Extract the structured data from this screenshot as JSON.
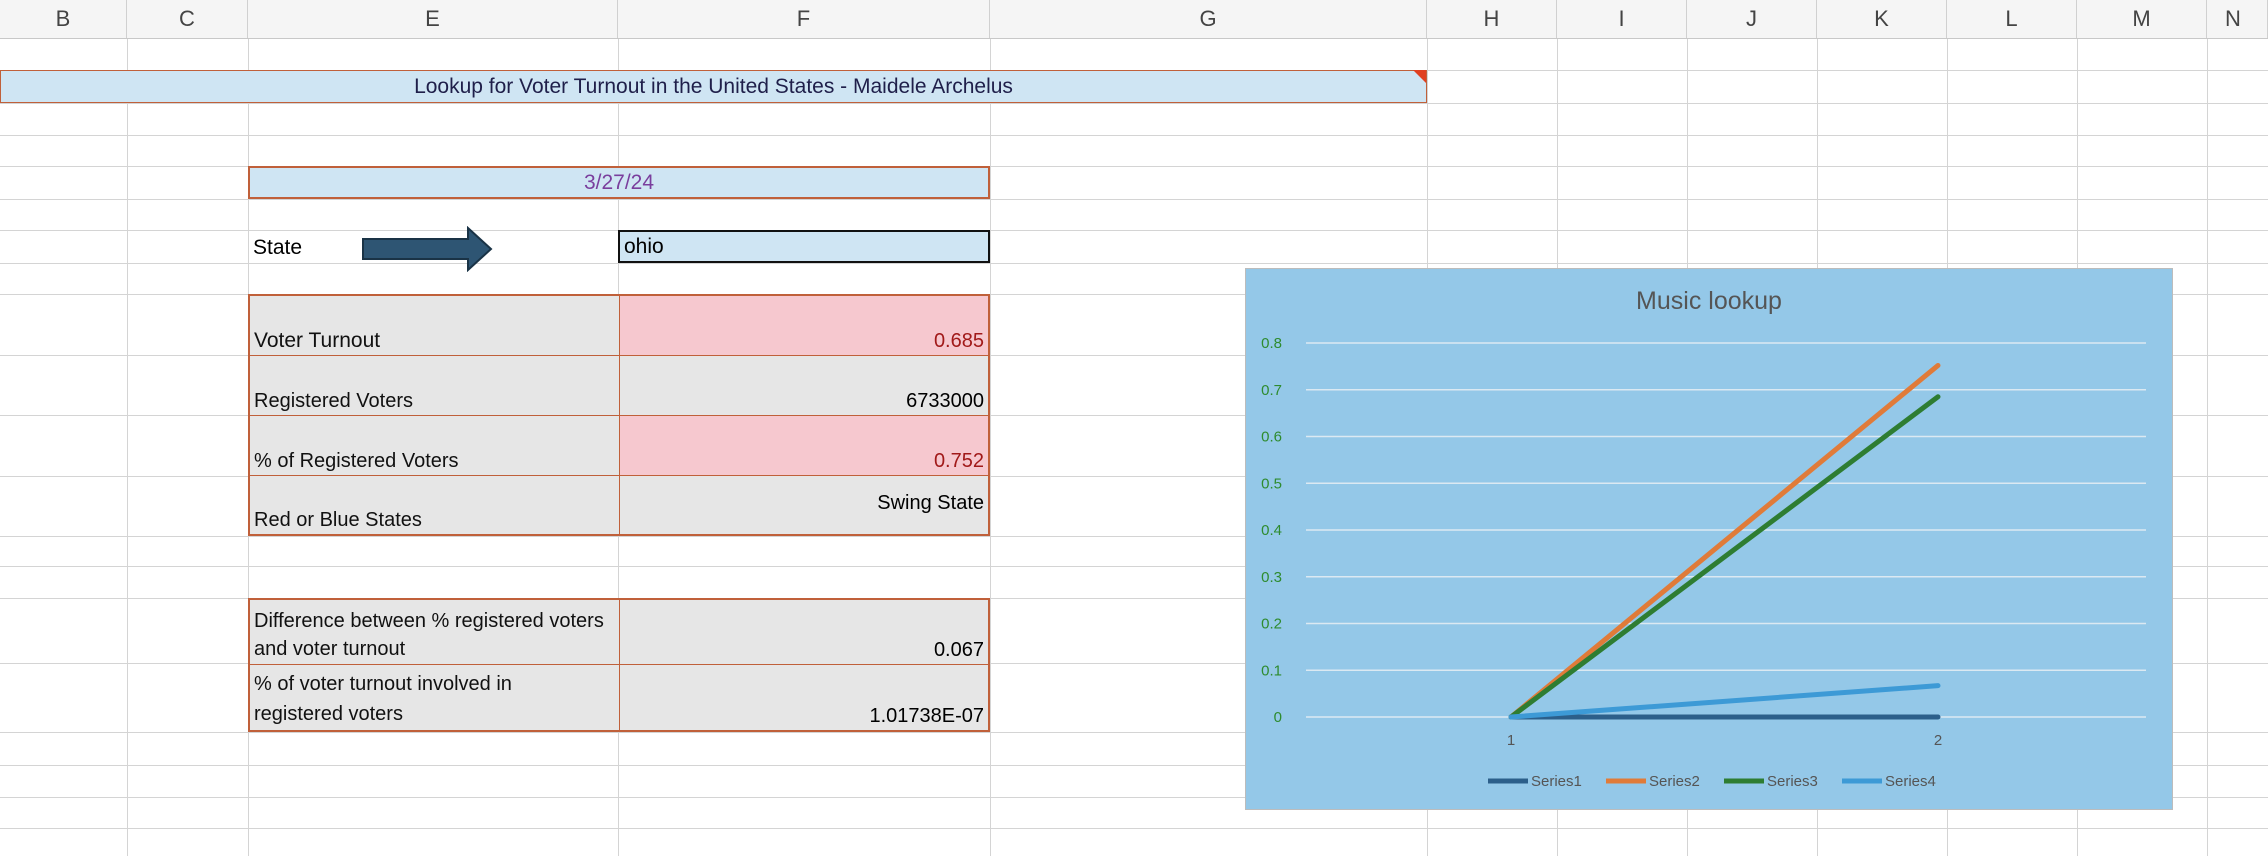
{
  "columns": [
    "B",
    "C",
    "E",
    "F",
    "G",
    "H",
    "I",
    "J",
    "K",
    "L",
    "M",
    "N"
  ],
  "active_column": "E",
  "title": "Lookup for Voter Turnout in the United States - Maidele Archelus",
  "date": "3/27/24",
  "state_label": "State",
  "state_value": "ohio",
  "stats": [
    {
      "label": "Voter Turnout",
      "value": "0.685",
      "highlight": true
    },
    {
      "label": "Registered Voters",
      "value": "6733000",
      "highlight": false
    },
    {
      "label": "% of Registered Voters",
      "value": "0.752",
      "highlight": true
    },
    {
      "label": "Red or Blue States",
      "value": "Swing State",
      "highlight": false
    }
  ],
  "diff": [
    {
      "label_lines": [
        "Difference between % registered voters",
        "and voter turnout"
      ],
      "value": "0.067"
    },
    {
      "label_lines": [
        "% of voter turnout involved in",
        "registered voters"
      ],
      "value": "1.01738E-07"
    }
  ],
  "colors": {
    "header_fill": "#cfe5f3",
    "border_accent": "#c0603a",
    "highlight_fill": "#f6c8cf",
    "grey_fill": "#e6e6e6",
    "arrow": "#2e5573",
    "chart_bg": "#94c8e8"
  },
  "chart_data": {
    "type": "line",
    "title": "Music lookup",
    "categories": [
      "1",
      "2"
    ],
    "ylim": [
      0,
      0.8
    ],
    "yticks": [
      "0",
      "0.1",
      "0.2",
      "0.3",
      "0.4",
      "0.5",
      "0.6",
      "0.7",
      "0.8"
    ],
    "grid": true,
    "legend_position": "bottom",
    "series": [
      {
        "name": "Series1",
        "values": [
          0,
          0
        ],
        "color": "#2c5f8a"
      },
      {
        "name": "Series2",
        "values": [
          0,
          0.752
        ],
        "color": "#e07b39"
      },
      {
        "name": "Series3",
        "values": [
          0,
          0.685
        ],
        "color": "#2e7d32"
      },
      {
        "name": "Series4",
        "values": [
          0,
          0.067
        ],
        "color": "#3d9ad6"
      }
    ]
  }
}
